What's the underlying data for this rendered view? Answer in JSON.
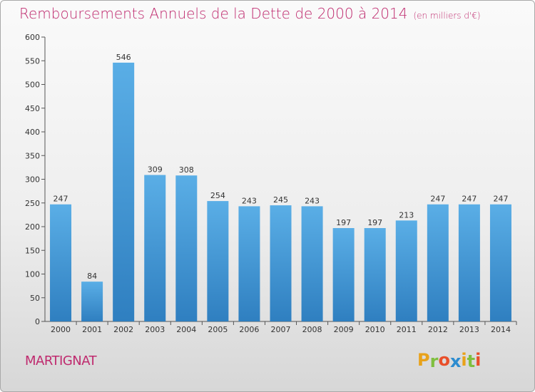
{
  "header": {
    "title": "Remboursements Annuels de la Dette de 2000 à 2014",
    "subtitle": "(en milliers d'€)"
  },
  "footer": {
    "city": "MARTIGNAT",
    "logo_letters": [
      "P",
      "r",
      "o",
      "x",
      "i",
      "t",
      "i"
    ],
    "logo_colors": [
      "#e8a21a",
      "#7fbf3f",
      "#e94f2a",
      "#2d8ccf",
      "#e8a21a",
      "#7fbf3f",
      "#e94f2a"
    ]
  },
  "chart_data": {
    "type": "bar",
    "categories": [
      "2000",
      "2001",
      "2002",
      "2003",
      "2004",
      "2005",
      "2006",
      "2007",
      "2008",
      "2009",
      "2010",
      "2011",
      "2012",
      "2013",
      "2014"
    ],
    "values": [
      247,
      84,
      546,
      309,
      308,
      254,
      243,
      245,
      243,
      197,
      197,
      213,
      247,
      247,
      247
    ],
    "ylim": [
      0,
      600
    ],
    "yticks": [
      0,
      50,
      100,
      150,
      200,
      250,
      300,
      350,
      400,
      450,
      500,
      550,
      600
    ],
    "grid": false,
    "bar_color_top": "#5aaee6",
    "bar_color_bottom": "#2f7fc0"
  }
}
